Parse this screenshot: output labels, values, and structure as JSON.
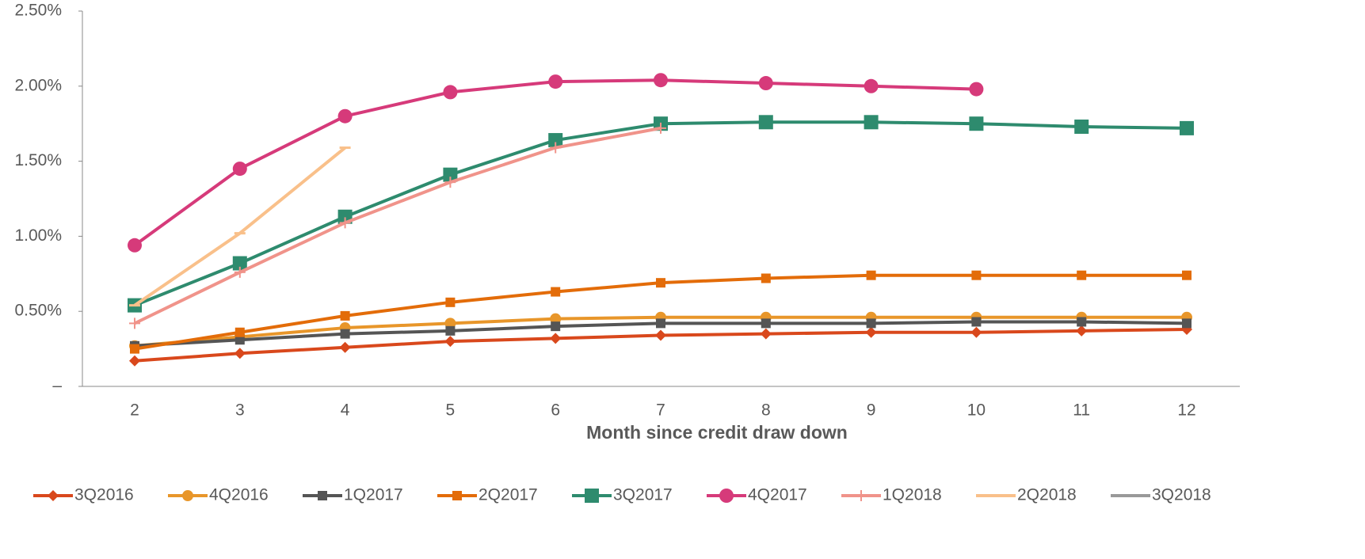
{
  "chart_data": {
    "type": "line",
    "x_label": "Month since credit draw down",
    "categories": [
      "2",
      "3",
      "4",
      "5",
      "6",
      "7",
      "8",
      "9",
      "10",
      "11",
      "12"
    ],
    "ylim": [
      0,
      2.5
    ],
    "yticks": [
      {
        "value": 0,
        "label": "–"
      },
      {
        "value": 0.5,
        "label": "0.50%"
      },
      {
        "value": 1,
        "label": "1.00%"
      },
      {
        "value": 1.5,
        "label": "1.50%"
      },
      {
        "value": 2,
        "label": "2.00%"
      },
      {
        "value": 2.5,
        "label": "2.50%"
      }
    ],
    "legend": "bottom",
    "series": [
      {
        "name": "3Q2016",
        "color": "#d9481c",
        "marker": "diamond",
        "values": [
          0.17,
          0.22,
          0.26,
          0.3,
          0.32,
          0.34,
          0.35,
          0.36,
          0.36,
          0.37,
          0.38
        ]
      },
      {
        "name": "4Q2016",
        "color": "#e8962a",
        "marker": "circle",
        "values": [
          0.27,
          0.33,
          0.39,
          0.42,
          0.45,
          0.46,
          0.46,
          0.46,
          0.46,
          0.46,
          0.46
        ]
      },
      {
        "name": "1Q2017",
        "color": "#555555",
        "marker": "square",
        "values": [
          0.27,
          0.31,
          0.35,
          0.37,
          0.4,
          0.42,
          0.42,
          0.42,
          0.43,
          0.43,
          0.42
        ]
      },
      {
        "name": "2Q2017",
        "color": "#e36c09",
        "marker": "square",
        "values": [
          0.25,
          0.36,
          0.47,
          0.56,
          0.63,
          0.69,
          0.72,
          0.74,
          0.74,
          0.74,
          0.74
        ]
      },
      {
        "name": "3Q2017",
        "color": "#2e8b6e",
        "marker": "bigsquare",
        "values": [
          0.54,
          0.82,
          1.13,
          1.41,
          1.64,
          1.75,
          1.76,
          1.76,
          1.75,
          1.73,
          1.72
        ]
      },
      {
        "name": "4Q2017",
        "color": "#d63a7a",
        "marker": "bigcircle",
        "values": [
          0.94,
          1.45,
          1.8,
          1.96,
          2.03,
          2.04,
          2.02,
          2.0,
          1.98,
          null,
          null
        ]
      },
      {
        "name": "1Q2018",
        "color": "#f0938a",
        "marker": "plus",
        "values": [
          0.42,
          0.76,
          1.09,
          1.36,
          1.59,
          1.72,
          null,
          null,
          null,
          null,
          null
        ]
      },
      {
        "name": "2Q2018",
        "color": "#f9c08a",
        "marker": "dash",
        "values": [
          0.54,
          1.02,
          1.59,
          null,
          null,
          null,
          null,
          null,
          null,
          null,
          null
        ]
      },
      {
        "name": "3Q2018",
        "color": "#999999",
        "marker": "none",
        "values": [
          null,
          null,
          null,
          null,
          null,
          null,
          null,
          null,
          null,
          null,
          null
        ]
      }
    ]
  }
}
